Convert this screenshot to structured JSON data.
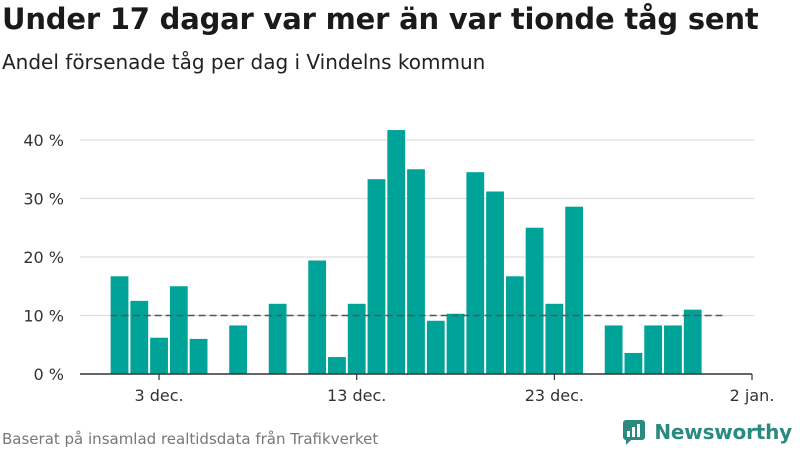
{
  "header": {
    "title": "Under 17 dagar var mer än var tionde tåg sent",
    "subtitle": "Andel försenade tåg per dag i Vindelns kommun"
  },
  "footer": {
    "source": "Baserat på insamlad realtidsdata från Trafikverket",
    "brand": "Newsworthy"
  },
  "colors": {
    "bar": "#00a398",
    "reference_line": "#555555",
    "grid": "#dddddd",
    "brand": "#2a8a7e"
  },
  "chart_data": {
    "type": "bar",
    "title": "Under 17 dagar var mer än var tionde tåg sent",
    "subtitle": "Andel försenade tåg per dag i Vindelns kommun",
    "x_axis": {
      "type": "date",
      "range": [
        "2023-11-29",
        "2024-01-02"
      ],
      "ticks": [
        {
          "date": "2023-12-03",
          "label": "3 dec."
        },
        {
          "date": "2023-12-13",
          "label": "13 dec."
        },
        {
          "date": "2023-12-23",
          "label": "23 dec."
        },
        {
          "date": "2024-01-02",
          "label": "2 jan."
        }
      ]
    },
    "y_axis": {
      "range": [
        0,
        45
      ],
      "ticks": [
        {
          "value": 0,
          "label": "0 %"
        },
        {
          "value": 10,
          "label": "10 %"
        },
        {
          "value": 20,
          "label": "20 %"
        },
        {
          "value": 30,
          "label": "30 %"
        },
        {
          "value": 40,
          "label": "40 %"
        }
      ]
    },
    "grid": true,
    "reference_line": {
      "value": 10,
      "style": "dashed"
    },
    "series": [
      {
        "points": [
          {
            "date": "2023-12-01",
            "value": 16.7
          },
          {
            "date": "2023-12-02",
            "value": 12.5
          },
          {
            "date": "2023-12-03",
            "value": 6.2
          },
          {
            "date": "2023-12-04",
            "value": 15.0
          },
          {
            "date": "2023-12-05",
            "value": 6.0
          },
          {
            "date": "2023-12-07",
            "value": 8.3
          },
          {
            "date": "2023-12-09",
            "value": 12.0
          },
          {
            "date": "2023-12-11",
            "value": 19.4
          },
          {
            "date": "2023-12-12",
            "value": 2.9
          },
          {
            "date": "2023-12-13",
            "value": 12.0
          },
          {
            "date": "2023-12-14",
            "value": 33.3
          },
          {
            "date": "2023-12-15",
            "value": 41.7
          },
          {
            "date": "2023-12-16",
            "value": 35.0
          },
          {
            "date": "2023-12-17",
            "value": 9.1
          },
          {
            "date": "2023-12-18",
            "value": 10.3
          },
          {
            "date": "2023-12-19",
            "value": 34.5
          },
          {
            "date": "2023-12-20",
            "value": 31.2
          },
          {
            "date": "2023-12-21",
            "value": 16.7
          },
          {
            "date": "2023-12-22",
            "value": 25.0
          },
          {
            "date": "2023-12-23",
            "value": 12.0
          },
          {
            "date": "2023-12-24",
            "value": 28.6
          },
          {
            "date": "2023-12-26",
            "value": 8.3
          },
          {
            "date": "2023-12-27",
            "value": 3.6
          },
          {
            "date": "2023-12-28",
            "value": 8.3
          },
          {
            "date": "2023-12-29",
            "value": 8.3
          },
          {
            "date": "2023-12-30",
            "value": 11.0
          }
        ]
      }
    ]
  }
}
